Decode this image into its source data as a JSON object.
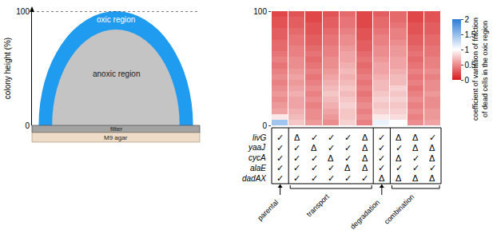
{
  "chart_data": [
    {
      "type": "diagram",
      "y_label": "colony height (%)",
      "ylim": [
        0,
        100
      ],
      "yticks": [
        0,
        100
      ],
      "region_labels": [
        "oxic region",
        "anoxic region",
        "filter",
        "M9 agar"
      ]
    },
    {
      "type": "heatmap",
      "y": [
        2.5,
        7.5,
        12.5,
        17.5,
        22.5,
        27.5,
        32.5,
        37.5,
        42.5,
        47.5,
        52.5,
        57.5,
        62.5,
        67.5,
        72.5,
        77.5,
        82.5,
        87.5,
        92.5,
        97.5
      ],
      "z": [
        [
          1.45,
          0.75,
          0.55,
          0.5,
          0.8,
          0.45,
          1.1,
          1.0,
          0.5,
          0.6
        ],
        [
          0.9,
          0.7,
          0.5,
          0.55,
          0.75,
          0.5,
          0.9,
          0.85,
          0.45,
          0.55
        ],
        [
          0.6,
          0.65,
          0.5,
          0.6,
          0.75,
          0.45,
          0.8,
          0.8,
          0.5,
          0.55
        ],
        [
          0.55,
          0.6,
          0.45,
          0.65,
          0.8,
          0.5,
          0.75,
          0.75,
          0.45,
          0.5
        ],
        [
          0.5,
          0.6,
          0.5,
          0.7,
          0.75,
          0.45,
          0.8,
          0.8,
          0.5,
          0.5
        ],
        [
          0.55,
          0.65,
          0.45,
          0.75,
          0.7,
          0.4,
          0.75,
          0.75,
          0.45,
          0.55
        ],
        [
          0.5,
          0.6,
          0.5,
          0.7,
          0.75,
          0.45,
          0.7,
          0.8,
          0.4,
          0.5
        ],
        [
          0.45,
          0.55,
          0.45,
          0.65,
          0.7,
          0.4,
          0.7,
          0.7,
          0.45,
          0.5
        ],
        [
          0.5,
          0.6,
          0.4,
          0.6,
          0.65,
          0.45,
          0.65,
          0.7,
          0.4,
          0.45
        ],
        [
          0.45,
          0.55,
          0.45,
          0.55,
          0.7,
          0.4,
          0.6,
          0.65,
          0.45,
          0.5
        ],
        [
          0.4,
          0.5,
          0.4,
          0.5,
          0.65,
          0.35,
          0.6,
          0.6,
          0.4,
          0.45
        ],
        [
          0.45,
          0.5,
          0.35,
          0.5,
          0.6,
          0.4,
          0.55,
          0.6,
          0.35,
          0.45
        ],
        [
          0.4,
          0.45,
          0.4,
          0.45,
          0.6,
          0.35,
          0.5,
          0.55,
          0.4,
          0.4
        ],
        [
          0.35,
          0.45,
          0.35,
          0.45,
          0.55,
          0.3,
          0.5,
          0.55,
          0.35,
          0.4
        ],
        [
          0.35,
          0.4,
          0.3,
          0.4,
          0.5,
          0.3,
          0.45,
          0.5,
          0.3,
          0.35
        ],
        [
          0.3,
          0.4,
          0.3,
          0.4,
          0.5,
          0.25,
          0.45,
          0.45,
          0.3,
          0.35
        ],
        [
          0.3,
          0.35,
          0.25,
          0.35,
          0.45,
          0.25,
          0.4,
          0.45,
          0.25,
          0.3
        ],
        [
          0.25,
          0.3,
          0.25,
          0.3,
          0.4,
          0.2,
          0.35,
          0.4,
          0.25,
          0.3
        ],
        [
          0.25,
          0.3,
          0.2,
          0.3,
          0.4,
          0.2,
          0.35,
          0.35,
          0.2,
          0.25
        ],
        [
          0.2,
          0.25,
          0.2,
          0.25,
          0.35,
          0.2,
          0.3,
          0.35,
          0.2,
          0.25
        ]
      ],
      "ylim": [
        0,
        100
      ],
      "yticks": [
        0,
        100
      ],
      "tick_labels": "y",
      "colorbar": {
        "title": [
          "coefficient of variation of fraction",
          "of dead cells in the oxic region"
        ],
        "range": [
          0,
          2
        ],
        "ticks": [
          0,
          0.5,
          1,
          1.5,
          2
        ],
        "colors": [
          "#d7191c",
          "#ffffff",
          "#2c7bd6"
        ]
      },
      "rows": [
        {
          "gene": "livG",
          "marks": [
            "✓",
            "Δ",
            "✓",
            "✓",
            "✓",
            "Δ",
            "✓",
            "Δ",
            "Δ",
            "✓"
          ]
        },
        {
          "gene": "yaaJ",
          "marks": [
            "✓",
            "✓",
            "Δ",
            "✓",
            "✓",
            "Δ",
            "✓",
            "✓",
            "Δ",
            "Δ"
          ]
        },
        {
          "gene": "cycA",
          "marks": [
            "✓",
            "✓",
            "✓",
            "Δ",
            "✓",
            "Δ",
            "✓",
            "Δ",
            "✓",
            "Δ"
          ]
        },
        {
          "gene": "alaE",
          "marks": [
            "✓",
            "✓",
            "✓",
            "✓",
            "Δ",
            "Δ",
            "✓",
            "✓",
            "✓",
            "✓"
          ]
        },
        {
          "gene": "dadAX",
          "marks": [
            "✓",
            "✓",
            "✓",
            "✓",
            "✓",
            "✓",
            "Δ",
            "Δ",
            "Δ",
            "Δ"
          ]
        }
      ],
      "groups": [
        {
          "label": "parental",
          "columns": [
            0,
            0
          ]
        },
        {
          "label": "transport",
          "columns": [
            1,
            5
          ]
        },
        {
          "label": "degradation",
          "columns": [
            6,
            6
          ]
        },
        {
          "label": "combination",
          "columns": [
            7,
            9
          ]
        }
      ]
    }
  ]
}
